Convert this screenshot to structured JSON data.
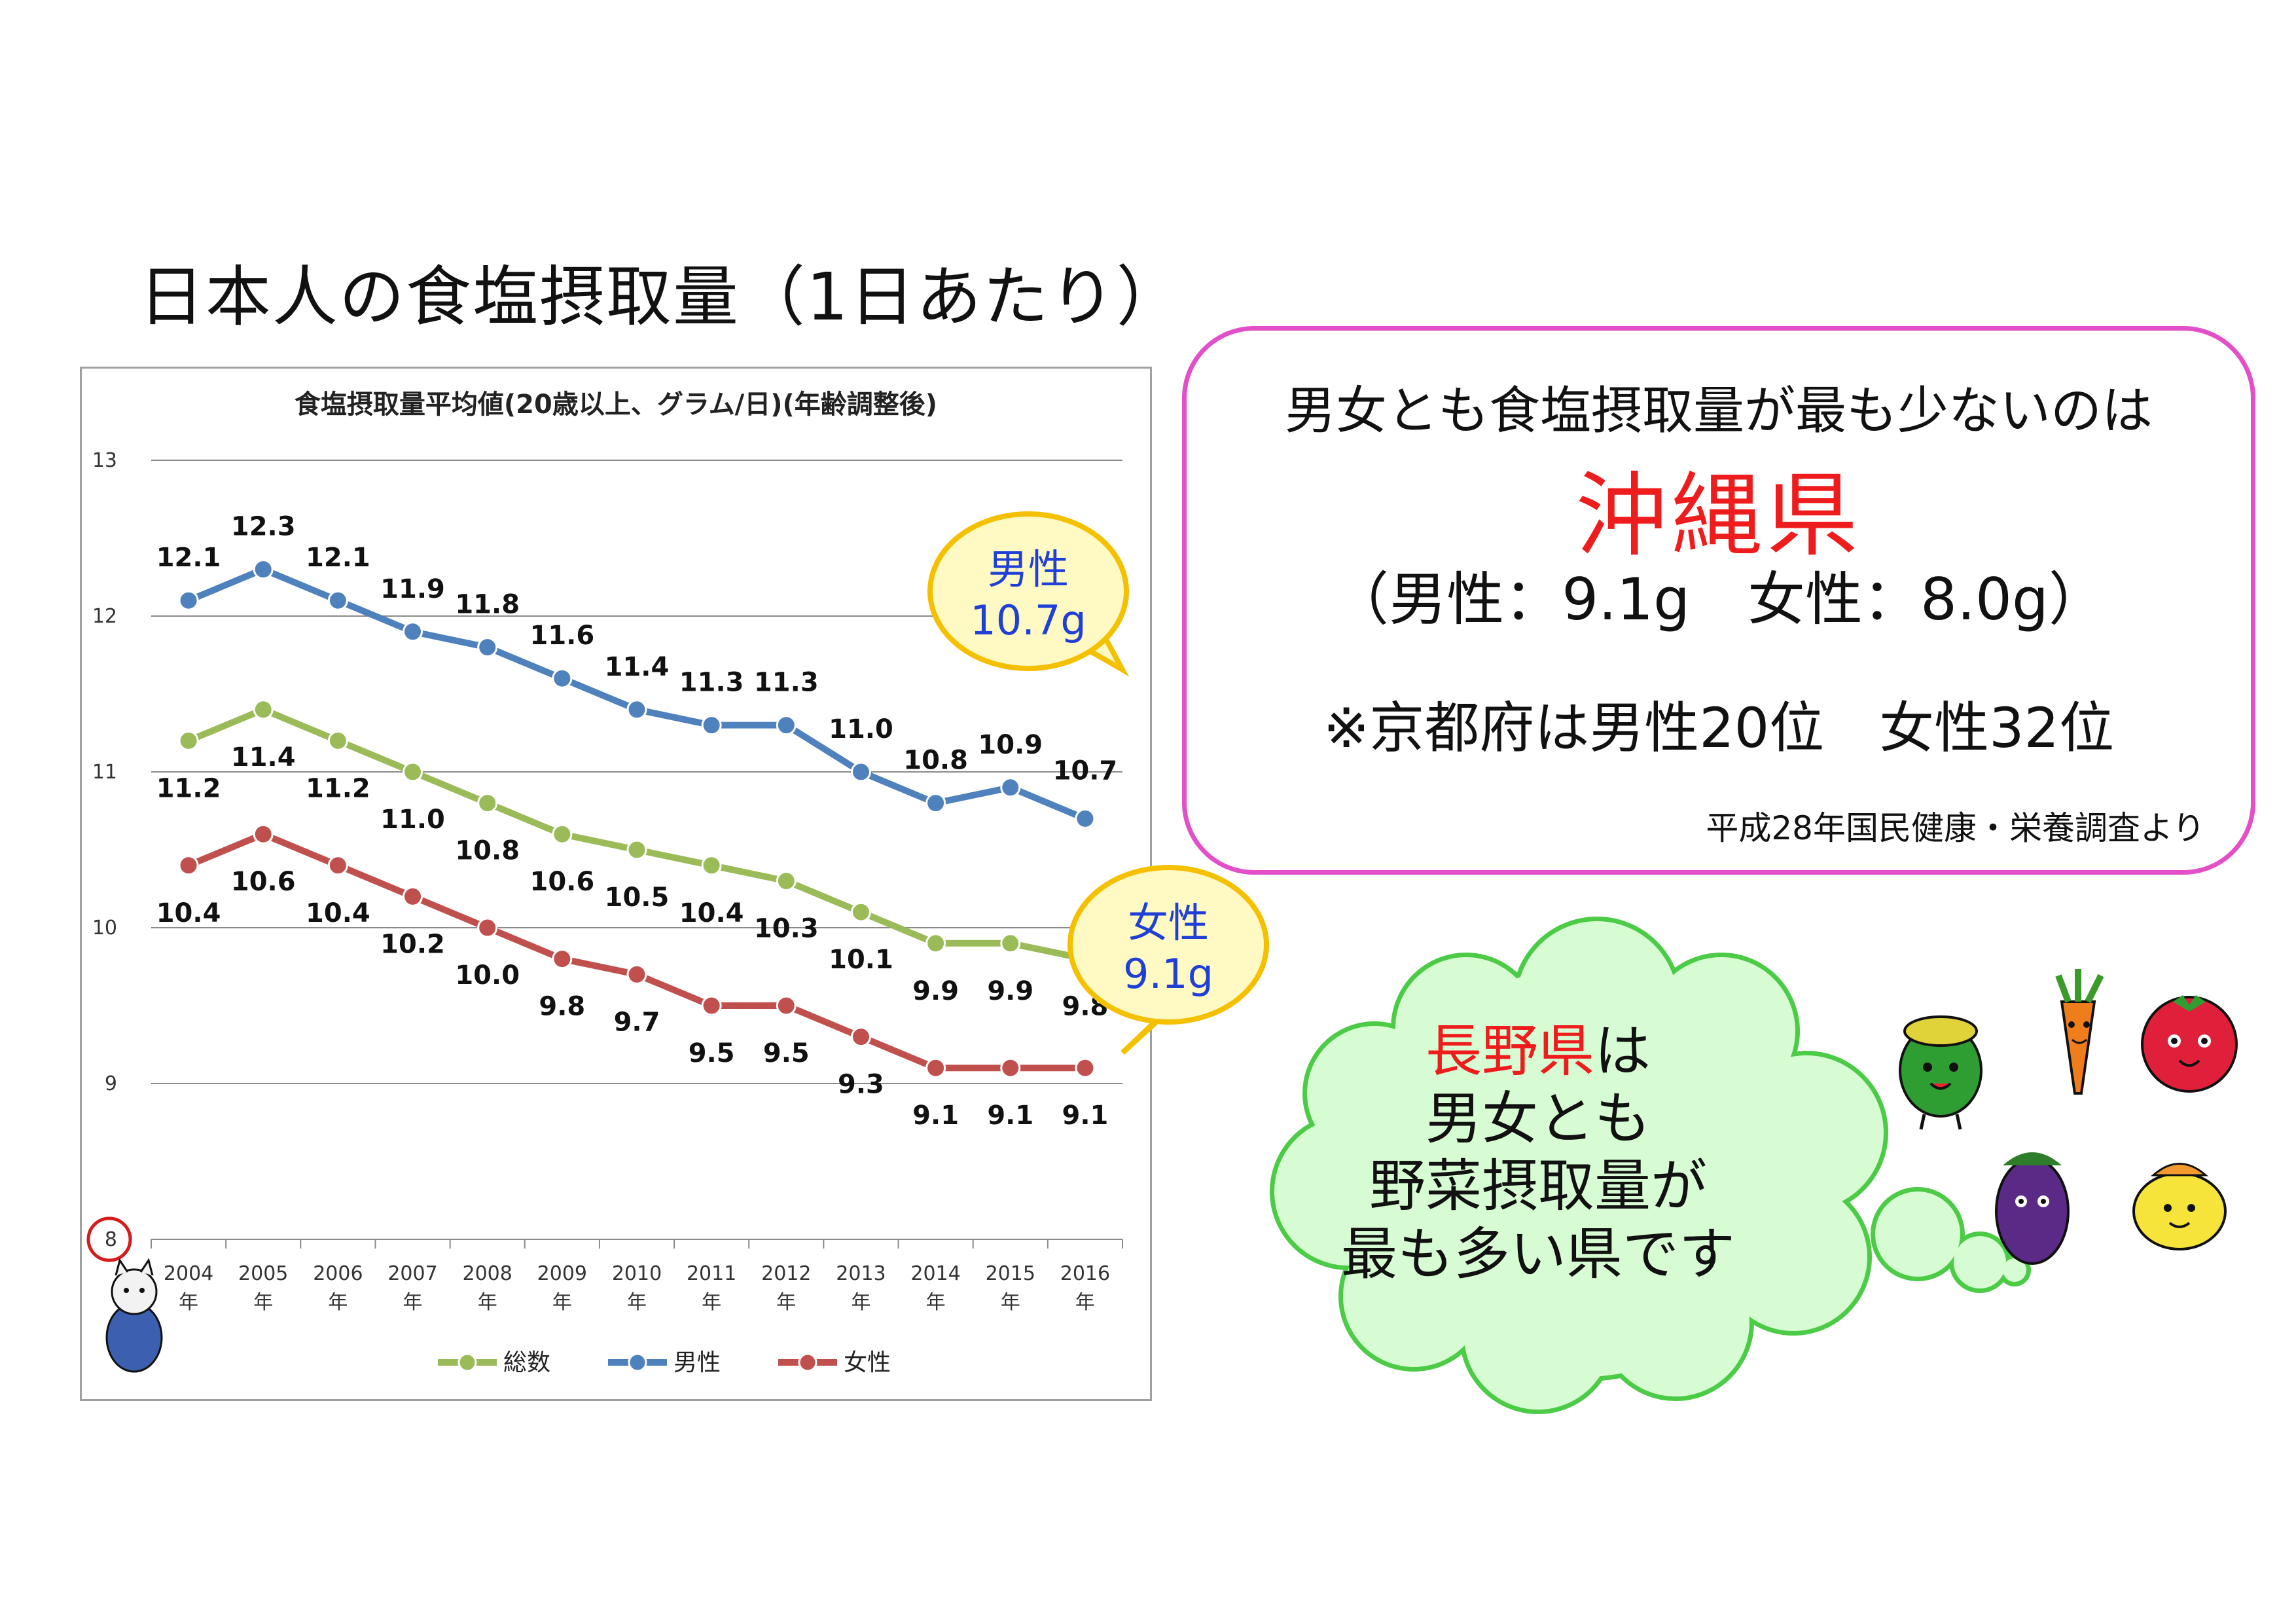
{
  "page_title": "日本人の食塩摂取量（1日あたり）",
  "chart_data": {
    "type": "line",
    "title": "食塩摂取量平均値(20歳以上、グラム/日)(年齢調整後)",
    "categories": [
      "2004年",
      "2005年",
      "2006年",
      "2007年",
      "2008年",
      "2009年",
      "2010年",
      "2011年",
      "2012年",
      "2013年",
      "2014年",
      "2015年",
      "2016年"
    ],
    "ylim": [
      8,
      13
    ],
    "yticks": [
      8,
      9,
      10,
      11,
      12,
      13
    ],
    "grid": true,
    "legend_position": "bottom",
    "series": [
      {
        "name": "総数",
        "color": "#9bbb59",
        "values": [
          11.2,
          11.4,
          11.2,
          11.0,
          10.8,
          10.6,
          10.5,
          10.4,
          10.3,
          10.1,
          9.9,
          9.9,
          9.8
        ]
      },
      {
        "name": "男性",
        "color": "#4f81bd",
        "values": [
          12.1,
          12.3,
          12.1,
          11.9,
          11.8,
          11.6,
          11.4,
          11.3,
          11.3,
          11.0,
          10.8,
          10.9,
          10.7
        ]
      },
      {
        "name": "女性",
        "color": "#c0504d",
        "values": [
          10.4,
          10.6,
          10.4,
          10.2,
          10.0,
          9.8,
          9.7,
          9.5,
          9.5,
          9.3,
          9.1,
          9.1,
          9.1
        ]
      }
    ],
    "callouts": [
      {
        "label": "男性",
        "value": "10.7g"
      },
      {
        "label": "女性",
        "value": "9.1g"
      }
    ]
  },
  "info_box": {
    "line1": "男女とも食塩摂取量が最も少ないのは",
    "prefecture": "沖縄県",
    "amounts": "（男性：9.1g　女性：8.0g）",
    "kyoto_rank": "※京都府は男性20位　女性32位",
    "source": "平成28年国民健康・栄養調査より"
  },
  "cloud": {
    "prefecture": "長野県",
    "suffix": "は",
    "line2": "男女とも",
    "line3": "野菜摂取量が",
    "line4": "最も多い県です"
  },
  "colors": {
    "accent_red": "#ee1c1c",
    "info_border": "#e34fc8",
    "cloud_fill": "#d7fcd3",
    "cloud_border": "#4ccb47",
    "callout_fill": "#fff9c4",
    "callout_border": "#f5c000",
    "callout_text": "#1f3fd6"
  }
}
